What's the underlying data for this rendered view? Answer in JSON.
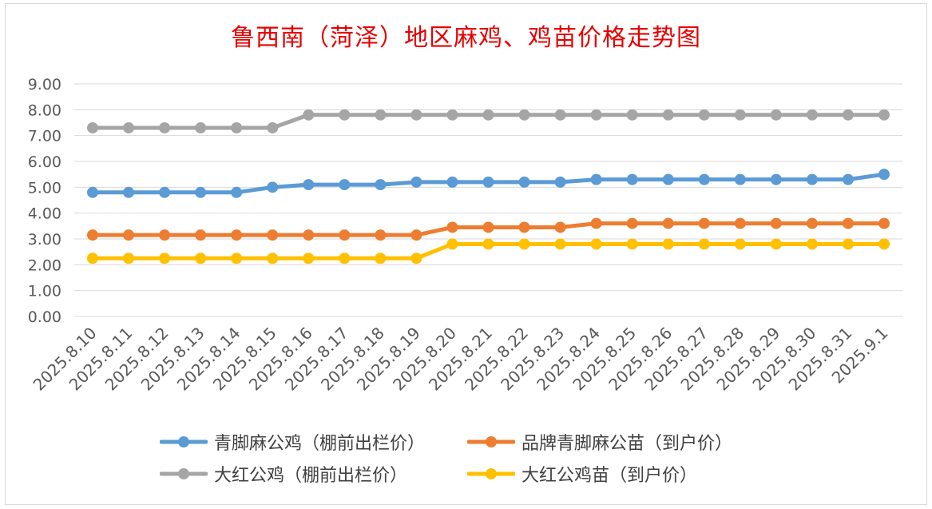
{
  "chart_data": {
    "type": "line",
    "title": "鲁西南（菏泽）地区麻鸡、鸡苗价格走势图",
    "xlabel": "",
    "ylabel": "",
    "ylim": [
      0,
      9
    ],
    "ytick_labels": [
      "0.00",
      "1.00",
      "2.00",
      "3.00",
      "4.00",
      "5.00",
      "6.00",
      "7.00",
      "8.00",
      "9.00"
    ],
    "grid": true,
    "legend_position": "bottom",
    "categories": [
      "2025.8.10",
      "2025.8.11",
      "2025.8.12",
      "2025.8.13",
      "2025.8.14",
      "2025.8.15",
      "2025.8.16",
      "2025.8.17",
      "2025.8.18",
      "2025.8.19",
      "2025.8.20",
      "2025.8.21",
      "2025.8.22",
      "2025.8.23",
      "2025.8.24",
      "2025.8.25",
      "2025.8.26",
      "2025.8.27",
      "2025.8.28",
      "2025.8.29",
      "2025.8.30",
      "2025.8.31",
      "2025.9.1"
    ],
    "series": [
      {
        "name": "青脚麻公鸡（棚前出栏价）",
        "color": "#5b9bd5",
        "values": [
          4.8,
          4.8,
          4.8,
          4.8,
          4.8,
          5.0,
          5.1,
          5.1,
          5.1,
          5.2,
          5.2,
          5.2,
          5.2,
          5.2,
          5.3,
          5.3,
          5.3,
          5.3,
          5.3,
          5.3,
          5.3,
          5.3,
          5.5
        ]
      },
      {
        "name": "品牌青脚麻公苗（到户价）",
        "color": "#ed7d31",
        "values": [
          3.15,
          3.15,
          3.15,
          3.15,
          3.15,
          3.15,
          3.15,
          3.15,
          3.15,
          3.15,
          3.45,
          3.45,
          3.45,
          3.45,
          3.6,
          3.6,
          3.6,
          3.6,
          3.6,
          3.6,
          3.6,
          3.6,
          3.6
        ]
      },
      {
        "name": "大红公鸡（棚前出栏价）",
        "color": "#a5a5a5",
        "values": [
          7.3,
          7.3,
          7.3,
          7.3,
          7.3,
          7.3,
          7.8,
          7.8,
          7.8,
          7.8,
          7.8,
          7.8,
          7.8,
          7.8,
          7.8,
          7.8,
          7.8,
          7.8,
          7.8,
          7.8,
          7.8,
          7.8,
          7.8
        ]
      },
      {
        "name": "大红公鸡苗（到户价）",
        "color": "#ffc000",
        "values": [
          2.25,
          2.25,
          2.25,
          2.25,
          2.25,
          2.25,
          2.25,
          2.25,
          2.25,
          2.25,
          2.8,
          2.8,
          2.8,
          2.8,
          2.8,
          2.8,
          2.8,
          2.8,
          2.8,
          2.8,
          2.8,
          2.8,
          2.8
        ]
      }
    ]
  }
}
